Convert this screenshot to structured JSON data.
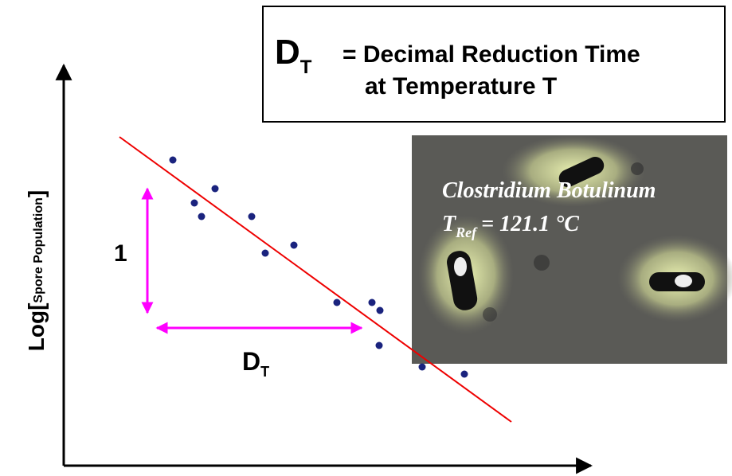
{
  "definition": {
    "symbol": "D",
    "subscript": "T",
    "line1": "= Decimal Reduction Time",
    "line2": "at Temperature T"
  },
  "axis_label": {
    "prefix": "Log[",
    "subscript": "Spore Population",
    "suffix": "]"
  },
  "rise_label": "1",
  "run_label": {
    "symbol": "D",
    "subscript": "T"
  },
  "image_caption": {
    "organism": "Clostridium Botulinum",
    "symbol": "T",
    "subscript": "Ref",
    "text": "= 121.1 °C"
  }
}
